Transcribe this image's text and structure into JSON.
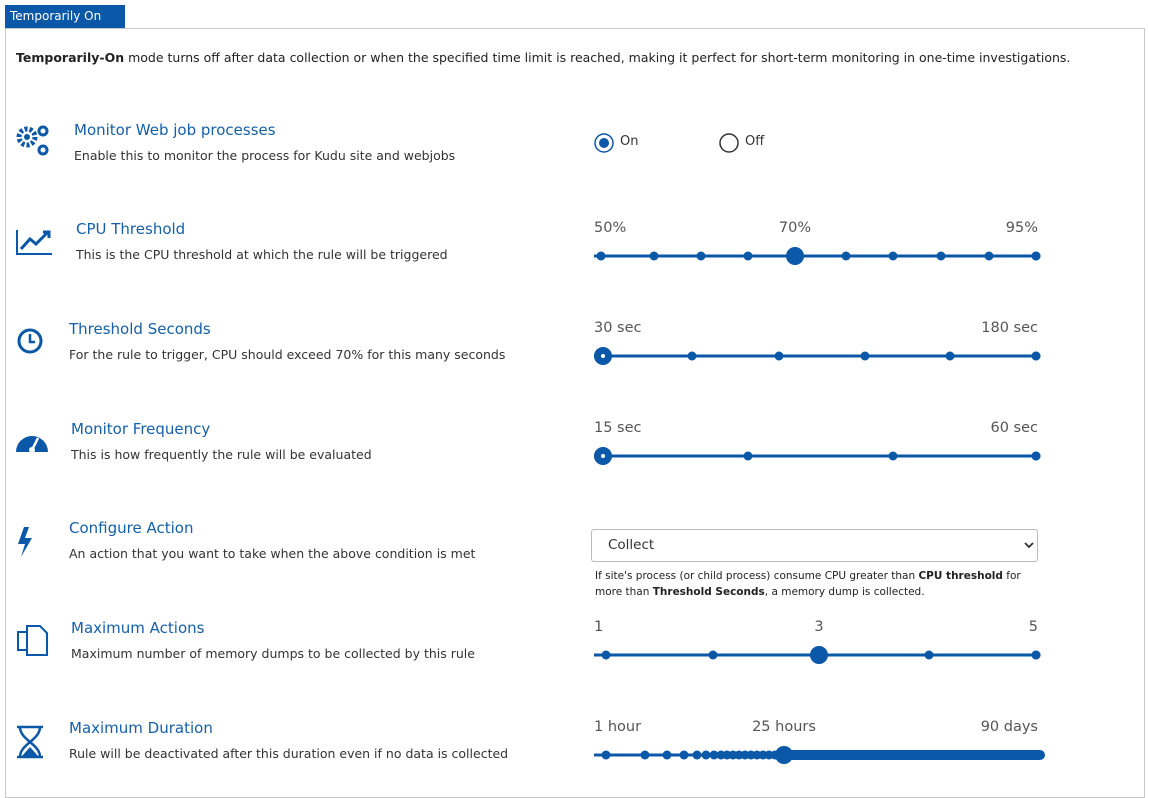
{
  "tab": "Temporarily On",
  "intro": {
    "emphasis": "Temporarily-On",
    "text": " mode turns off after data collection or when the specified time limit is reached, making it perfect for short-term monitoring in one-time investigations."
  },
  "settings": [
    {
      "title": "Monitor Web job processes",
      "description": "Enable this to monitor the process for Kudu site and webjobs",
      "options": [
        "On",
        "Off"
      ]
    },
    {
      "title": "CPU Threshold",
      "description": "This is the CPU threshold at which the rule will be triggered",
      "slider_labels": [
        "50%",
        "70%",
        "95%"
      ]
    },
    {
      "title": "Threshold Seconds",
      "description": "For the rule to trigger, CPU should exceed 70% for this many seconds",
      "slider_labels": [
        "30 sec",
        "180 sec"
      ]
    },
    {
      "title": "Monitor Frequency",
      "description": "This is how frequently the rule will be evaluated",
      "slider_labels": [
        "15 sec",
        "60 sec"
      ]
    },
    {
      "title": "Configure Action",
      "description": "An action that you want to take when the above condition is met",
      "selected": "Collect",
      "note": [
        "If site's process (or child process) consume CPU greater than ",
        "CPU threshold",
        " for more than ",
        "Threshold Seconds",
        ", a memory dump is collected."
      ]
    },
    {
      "title": "Maximum Actions",
      "description": "Maximum number of memory dumps to be collected by this rule",
      "slider_labels": [
        "1",
        "3",
        "5"
      ]
    },
    {
      "title": "Maximum Duration",
      "description": "Rule will be deactivated after this duration even if no data is collected",
      "slider_labels": [
        "1 hour",
        "25 hours",
        "90 days"
      ]
    }
  ]
}
